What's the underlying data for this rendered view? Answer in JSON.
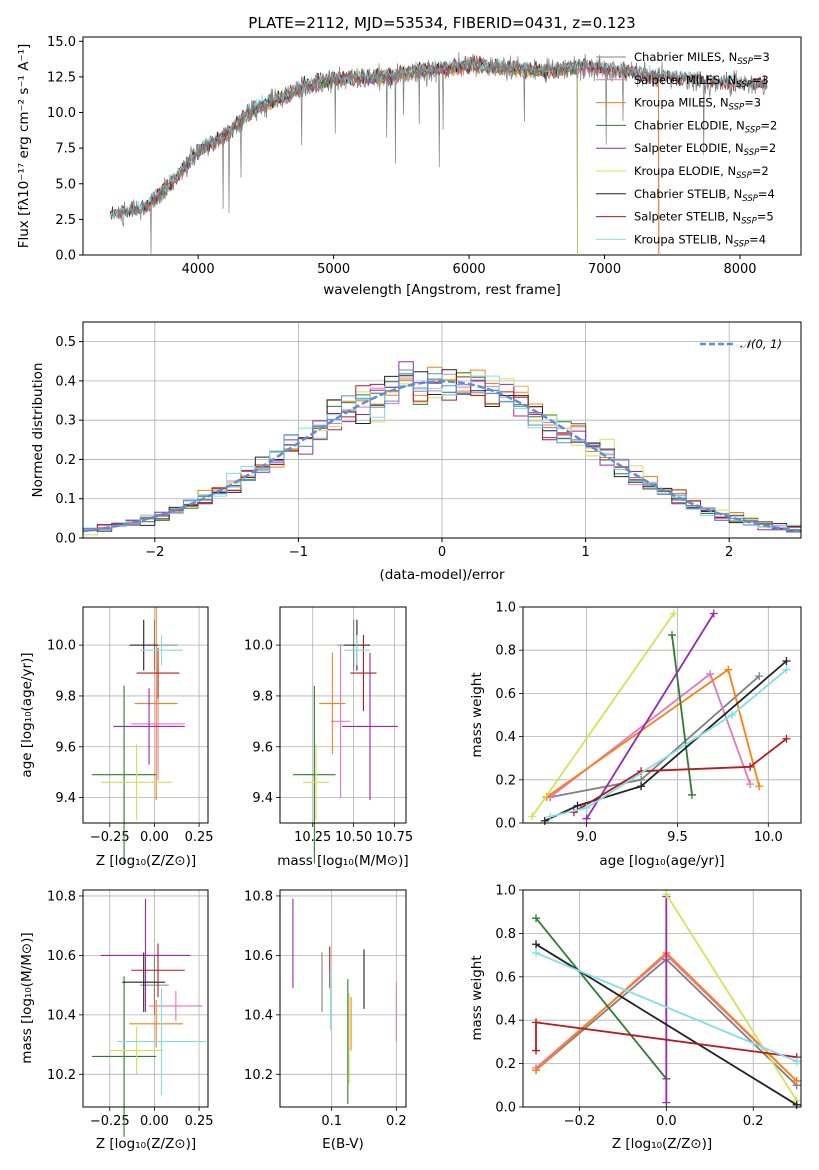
{
  "figure": {
    "title": "PLATE=2112, MJD=53534, FIBERID=0431, z=0.123"
  },
  "colors": {
    "Chabrier MILES": "#808080",
    "Salpeter MILES": "#e377c2",
    "Kroupa MILES": "#ff7f0e",
    "Chabrier ELODIE": "#2e7d32",
    "Salpeter ELODIE": "#9c27b0",
    "Kroupa ELODIE": "#d4e157",
    "Chabrier STELIB": "#222222",
    "Salpeter STELIB": "#b71c1c",
    "Kroupa STELIB": "#80deea"
  },
  "chart_data": [
    {
      "id": "spectrum",
      "type": "line",
      "title": "PLATE=2112, MJD=53534, FIBERID=0431, z=0.123",
      "xlabel": "wavelength [Angstrom, rest frame]",
      "ylabel": "Flux [fλ10⁻¹⁷ erg cm⁻² s⁻¹ A⁻¹]",
      "xlim": [
        3150,
        8450
      ],
      "ylim": [
        0,
        15.3
      ],
      "xticks": [
        4000,
        5000,
        6000,
        7000,
        8000
      ],
      "yticks": [
        0.0,
        2.5,
        5.0,
        7.5,
        10.0,
        12.5,
        15.0
      ],
      "grid": false,
      "legend_position": "top-right",
      "data_continuum": {
        "x": [
          3400,
          3600,
          3800,
          4000,
          4200,
          4400,
          4600,
          4800,
          5000,
          5200,
          5400,
          5600,
          5800,
          6000,
          6200,
          6400,
          6600,
          6800,
          7000,
          7200,
          7400,
          7600,
          7800,
          8000,
          8200
        ],
        "y": [
          2.8,
          3.3,
          5.0,
          7.3,
          8.4,
          10.2,
          11.0,
          11.9,
          12.3,
          12.4,
          12.5,
          12.9,
          13.1,
          13.3,
          13.2,
          13.0,
          12.9,
          13.2,
          13.1,
          12.8,
          12.5,
          12.3,
          12.1,
          12.0,
          11.8
        ]
      },
      "series": [
        {
          "name": "Chabrier MILES, N_SSP=3"
        },
        {
          "name": "Salpeter MILES, N_SSP=3"
        },
        {
          "name": "Kroupa MILES, N_SSP=3"
        },
        {
          "name": "Chabrier ELODIE, N_SSP=2"
        },
        {
          "name": "Salpeter ELODIE, N_SSP=2"
        },
        {
          "name": "Kroupa ELODIE, N_SSP=2"
        },
        {
          "name": "Chabrier STELIB, N_SSP=4"
        },
        {
          "name": "Salpeter STELIB, N_SSP=5"
        },
        {
          "name": "Kroupa STELIB, N_SSP=4"
        }
      ],
      "legend_entries": [
        {
          "pre": "Chabrier MILES, N",
          "sub": "SSP",
          "post": "=3"
        },
        {
          "pre": "Salpeter MILES, N",
          "sub": "SSP",
          "post": "=3"
        },
        {
          "pre": "Kroupa MILES, N",
          "sub": "SSP",
          "post": "=3"
        },
        {
          "pre": "Chabrier ELODIE, N",
          "sub": "SSP",
          "post": "=2"
        },
        {
          "pre": "Salpeter ELODIE, N",
          "sub": "SSP",
          "post": "=2"
        },
        {
          "pre": "Kroupa ELODIE, N",
          "sub": "SSP",
          "post": "=2"
        },
        {
          "pre": "Chabrier STELIB, N",
          "sub": "SSP",
          "post": "=4"
        },
        {
          "pre": "Salpeter STELIB, N",
          "sub": "SSP",
          "post": "=5"
        },
        {
          "pre": "Kroupa STELIB, N",
          "sub": "SSP",
          "post": "=4"
        }
      ]
    },
    {
      "id": "residuals",
      "type": "line",
      "xlabel": "(data-model)/error",
      "ylabel": "Normed distribution",
      "xlim": [
        -2.5,
        2.5
      ],
      "ylim": [
        0,
        0.55
      ],
      "xticks": [
        -2,
        -1,
        0,
        1,
        2
      ],
      "xtick_labels": [
        "−2",
        "−1",
        "0",
        "1",
        "2"
      ],
      "yticks": [
        0.0,
        0.1,
        0.2,
        0.3,
        0.4,
        0.5
      ],
      "grid": true,
      "legend_position": "top-right",
      "legend_label": "𝒩(0, 1)",
      "bin_edges": [
        -2.5,
        2.5
      ],
      "bin_width": 0.1,
      "reference_curve": {
        "name": "𝒩(0, 1)",
        "mean": 0,
        "sigma": 1
      }
    },
    {
      "id": "age-vs-Z",
      "type": "scatter",
      "xlabel": "Z [log₁₀(Z/Z⊙)]",
      "ylabel": "age  [log₁₀(age/yr)]",
      "xlim": [
        -0.4,
        0.3
      ],
      "ylim": [
        9.3,
        10.15
      ],
      "xticks": [
        -0.25,
        0.0,
        0.25
      ],
      "xtick_labels": [
        "−0.25",
        "0.00",
        "0.25"
      ],
      "yticks": [
        9.4,
        9.6,
        9.8,
        10.0
      ],
      "grid": true,
      "points": [
        {
          "series": "Chabrier MILES",
          "x": 0.0,
          "xerr": 0.13,
          "y": 10.0,
          "yerr": 0.1
        },
        {
          "series": "Salpeter MILES",
          "x": 0.02,
          "xerr": 0.15,
          "y": 9.69,
          "yerr": 0.22
        },
        {
          "series": "Kroupa MILES",
          "x": 0.01,
          "xerr": 0.12,
          "y": 9.77,
          "yerr": 0.38
        },
        {
          "series": "Chabrier ELODIE",
          "x": -0.17,
          "xerr": 0.18,
          "y": 9.49,
          "yerr": 0.35
        },
        {
          "series": "Salpeter ELODIE",
          "x": -0.03,
          "xerr": 0.2,
          "y": 9.68,
          "yerr": 0.15
        },
        {
          "series": "Kroupa ELODIE",
          "x": -0.1,
          "xerr": 0.2,
          "y": 9.46,
          "yerr": 0.15
        },
        {
          "series": "Chabrier STELIB",
          "x": -0.06,
          "xerr": 0.08,
          "y": 10.0,
          "yerr": 0.1
        },
        {
          "series": "Salpeter STELIB",
          "x": 0.02,
          "xerr": 0.12,
          "y": 9.89,
          "yerr": 0.1
        },
        {
          "series": "Kroupa STELIB",
          "x": 0.04,
          "xerr": 0.12,
          "y": 9.98,
          "yerr": 0.06
        }
      ]
    },
    {
      "id": "age-vs-mass",
      "type": "scatter",
      "xlabel": "mass [log₁₀(M/M⊙)]",
      "ylabel": "",
      "xlim": [
        10.05,
        10.82
      ],
      "ylim": [
        9.3,
        10.15
      ],
      "xticks": [
        10.25,
        10.5,
        10.75
      ],
      "xtick_labels": [
        "10.25",
        "10.50",
        "10.75"
      ],
      "yticks": [
        9.4,
        9.6,
        9.8,
        10.0
      ],
      "grid": true,
      "points": [
        {
          "series": "Chabrier MILES",
          "x": 10.5,
          "xerr": 0.1,
          "y": 10.0,
          "yerr": 0.1
        },
        {
          "series": "Salpeter MILES",
          "x": 10.42,
          "xerr": 0.06,
          "y": 9.7,
          "yerr": 0.3
        },
        {
          "series": "Kroupa MILES",
          "x": 10.37,
          "xerr": 0.08,
          "y": 9.77,
          "yerr": 0.2
        },
        {
          "series": "Chabrier ELODIE",
          "x": 10.26,
          "xerr": 0.13,
          "y": 9.49,
          "yerr": 0.35
        },
        {
          "series": "Salpeter ELODIE",
          "x": 10.6,
          "xerr": 0.17,
          "y": 9.68,
          "yerr": 0.29
        },
        {
          "series": "Kroupa ELODIE",
          "x": 10.27,
          "xerr": 0.08,
          "y": 9.46,
          "yerr": 0.15
        },
        {
          "series": "Chabrier STELIB",
          "x": 10.52,
          "xerr": 0.08,
          "y": 10.0,
          "yerr": 0.1
        },
        {
          "series": "Salpeter STELIB",
          "x": 10.56,
          "xerr": 0.08,
          "y": 9.89,
          "yerr": 0.15
        },
        {
          "series": "Kroupa STELIB",
          "x": 10.52,
          "xerr": 0.08,
          "y": 9.98,
          "yerr": 0.06
        }
      ]
    },
    {
      "id": "weight-vs-age",
      "type": "line",
      "xlabel": "age  [log₁₀(age/yr)]",
      "ylabel": "mass weight",
      "xlim": [
        8.65,
        10.18
      ],
      "ylim": [
        0,
        1.0
      ],
      "xticks": [
        9.0,
        9.5,
        10.0
      ],
      "yticks": [
        0.0,
        0.2,
        0.4,
        0.6,
        0.8,
        1.0
      ],
      "grid": true,
      "series": [
        {
          "key": "Chabrier MILES",
          "x": [
            8.8,
            9.3,
            9.95
          ],
          "y": [
            0.12,
            0.2,
            0.68
          ]
        },
        {
          "key": "Salpeter MILES",
          "x": [
            8.8,
            9.68,
            9.9
          ],
          "y": [
            0.12,
            0.69,
            0.18
          ]
        },
        {
          "key": "Kroupa MILES",
          "x": [
            8.78,
            9.78,
            9.95
          ],
          "y": [
            0.12,
            0.71,
            0.17
          ]
        },
        {
          "key": "Chabrier ELODIE",
          "x": [
            9.47,
            9.58
          ],
          "y": [
            0.87,
            0.13
          ]
        },
        {
          "key": "Salpeter ELODIE",
          "x": [
            9.0,
            9.7
          ],
          "y": [
            0.02,
            0.97
          ]
        },
        {
          "key": "Kroupa ELODIE",
          "x": [
            8.7,
            9.48
          ],
          "y": [
            0.03,
            0.97
          ]
        },
        {
          "key": "Chabrier STELIB",
          "x": [
            8.77,
            8.95,
            9.3,
            10.1
          ],
          "y": [
            0.01,
            0.08,
            0.17,
            0.75
          ]
        },
        {
          "key": "Salpeter STELIB",
          "x": [
            8.93,
            9.3,
            9.9,
            10.1
          ],
          "y": [
            0.05,
            0.24,
            0.26,
            0.39
          ]
        },
        {
          "key": "Kroupa STELIB",
          "x": [
            8.8,
            9.0,
            9.8,
            10.1
          ],
          "y": [
            0.03,
            0.07,
            0.5,
            0.71
          ]
        }
      ]
    },
    {
      "id": "mass-vs-Z",
      "type": "scatter",
      "xlabel": "Z [log₁₀(Z/Z⊙)]",
      "ylabel": "mass [log₁₀(M/M⊙)]",
      "xlim": [
        -0.4,
        0.3
      ],
      "ylim": [
        10.09,
        10.82
      ],
      "xticks": [
        -0.25,
        0.0,
        0.25
      ],
      "xtick_labels": [
        "−0.25",
        "0.00",
        "0.25"
      ],
      "yticks": [
        10.2,
        10.4,
        10.6,
        10.8
      ],
      "grid": true,
      "points": [
        {
          "series": "Chabrier MILES",
          "x": 0.0,
          "xerr": 0.08,
          "y": 10.5,
          "yerr": 0.1
        },
        {
          "series": "Salpeter MILES",
          "x": 0.12,
          "xerr": 0.15,
          "y": 10.43,
          "yerr": 0.05
        },
        {
          "series": "Kroupa MILES",
          "x": 0.01,
          "xerr": 0.15,
          "y": 10.37,
          "yerr": 0.08
        },
        {
          "series": "Chabrier ELODIE",
          "x": -0.17,
          "xerr": 0.18,
          "y": 10.26,
          "yerr": 0.27
        },
        {
          "series": "Salpeter ELODIE",
          "x": -0.05,
          "xerr": 0.25,
          "y": 10.6,
          "yerr": 0.19
        },
        {
          "series": "Kroupa ELODIE",
          "x": -0.1,
          "xerr": 0.15,
          "y": 10.28,
          "yerr": 0.08
        },
        {
          "series": "Chabrier STELIB",
          "x": -0.06,
          "xerr": 0.12,
          "y": 10.51,
          "yerr": 0.1
        },
        {
          "series": "Salpeter STELIB",
          "x": 0.02,
          "xerr": 0.15,
          "y": 10.55,
          "yerr": 0.09
        },
        {
          "series": "Kroupa STELIB",
          "x": 0.04,
          "xerr": 0.25,
          "y": 10.31,
          "yerr": 0.18
        }
      ]
    },
    {
      "id": "mass-vs-EBV",
      "type": "scatter",
      "xlabel": "E(B-V)",
      "ylabel": "",
      "xlim": [
        0.02,
        0.215
      ],
      "ylim": [
        10.09,
        10.82
      ],
      "xticks": [
        0.1,
        0.2
      ],
      "yticks": [
        10.2,
        10.4,
        10.6,
        10.8
      ],
      "grid": true,
      "points": [
        {
          "series": "Chabrier MILES",
          "x": 0.085,
          "y": 10.51,
          "yerr": 0.1
        },
        {
          "series": "Salpeter MILES",
          "x": 0.2,
          "y": 10.41,
          "yerr": 0.1
        },
        {
          "series": "Kroupa MILES",
          "x": 0.13,
          "y": 10.37,
          "yerr": 0.09
        },
        {
          "series": "Chabrier ELODIE",
          "x": 0.125,
          "y": 10.31,
          "yerr": 0.21
        },
        {
          "series": "Salpeter ELODIE",
          "x": 0.04,
          "y": 10.64,
          "yerr": 0.15
        },
        {
          "series": "Kroupa ELODIE",
          "x": 0.127,
          "y": 10.32,
          "yerr": 0.15
        },
        {
          "series": "Chabrier STELIB",
          "x": 0.15,
          "y": 10.52,
          "yerr": 0.1
        },
        {
          "series": "Salpeter STELIB",
          "x": 0.097,
          "y": 10.56,
          "yerr": 0.07
        },
        {
          "series": "Kroupa STELIB",
          "x": 0.098,
          "y": 10.45,
          "yerr": 0.1
        }
      ]
    },
    {
      "id": "weight-vs-Z",
      "type": "line",
      "xlabel": "Z [log₁₀(Z/Z⊙)]",
      "ylabel": "mass weight",
      "xlim": [
        -0.33,
        0.31
      ],
      "ylim": [
        0,
        1.0
      ],
      "xticks": [
        -0.2,
        0.0,
        0.2
      ],
      "xtick_labels": [
        "−0.2",
        "0.0",
        "0.2"
      ],
      "yticks": [
        0.0,
        0.2,
        0.4,
        0.6,
        0.8,
        1.0
      ],
      "grid": true,
      "series": [
        {
          "key": "Chabrier MILES",
          "x": [
            -0.3,
            0.0,
            0.3
          ],
          "y": [
            0.17,
            0.68,
            0.1
          ]
        },
        {
          "key": "Salpeter MILES",
          "x": [
            -0.3,
            0.0,
            0.3
          ],
          "y": [
            0.18,
            0.7,
            0.12
          ]
        },
        {
          "key": "Kroupa MILES",
          "x": [
            -0.3,
            0.0,
            0.3
          ],
          "y": [
            0.17,
            0.71,
            0.12
          ]
        },
        {
          "key": "Chabrier ELODIE",
          "x": [
            -0.3,
            0.0
          ],
          "y": [
            0.87,
            0.13
          ]
        },
        {
          "key": "Salpeter ELODIE",
          "x": [
            0.0,
            0.0
          ],
          "y": [
            0.02,
            0.97
          ]
        },
        {
          "key": "Kroupa ELODIE",
          "x": [
            0.0,
            0.3
          ],
          "y": [
            0.98,
            0.03
          ]
        },
        {
          "key": "Chabrier STELIB",
          "x": [
            -0.3,
            0.3
          ],
          "y": [
            0.75,
            0.01
          ]
        },
        {
          "key": "Salpeter STELIB",
          "x": [
            -0.3,
            -0.3,
            0.3
          ],
          "y": [
            0.26,
            0.39,
            0.23
          ]
        },
        {
          "key": "Kroupa STELIB",
          "x": [
            -0.3,
            0.3
          ],
          "y": [
            0.71,
            0.21
          ]
        }
      ]
    }
  ]
}
